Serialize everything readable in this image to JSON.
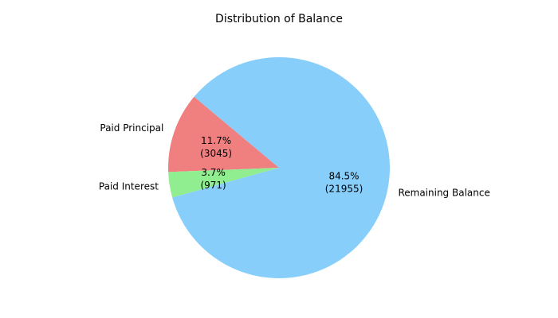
{
  "chart_data": {
    "type": "pie",
    "title": "Distribution of Balance",
    "categories": [
      "Paid Principal",
      "Paid Interest",
      "Remaining Balance"
    ],
    "values": [
      3045,
      971,
      21955
    ],
    "percent_labels": [
      "11.7%",
      "3.7%",
      "84.5%"
    ],
    "value_labels": [
      "(3045)",
      "(971)",
      "(21955)"
    ],
    "colors": [
      "#f08080",
      "#90ee90",
      "#87cefa"
    ],
    "start_angle_deg": 140,
    "direction": "counterclockwise",
    "legend": "none"
  }
}
